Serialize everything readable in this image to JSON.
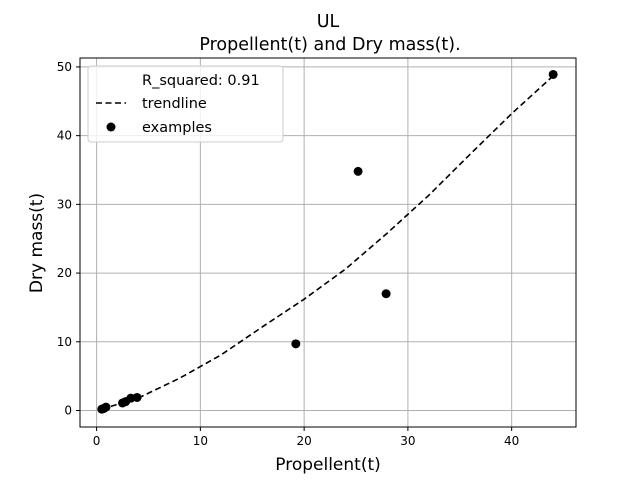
{
  "chart_data": {
    "type": "scatter",
    "title": "UL",
    "subtitle": "Propellent(t) and Dry mass(t).",
    "xlabel": "Propellent(t)",
    "ylabel": "Dry mass(t)",
    "xlim": [
      -1.6,
      46.2
    ],
    "ylim": [
      -2.4,
      51.3
    ],
    "xticks": [
      0,
      10,
      20,
      30,
      40
    ],
    "yticks": [
      0,
      10,
      20,
      30,
      40,
      50
    ],
    "grid": true,
    "legend_position": "top-left",
    "legend": [
      {
        "label": "R_squared: 0.91",
        "marker": "none"
      },
      {
        "label": "trendline",
        "marker": "dashed-line"
      },
      {
        "label": "examples",
        "marker": "dot"
      }
    ],
    "series": [
      {
        "name": "examples",
        "kind": "scatter",
        "color": "#000000",
        "points": [
          {
            "x": 0.5,
            "y": 0.2
          },
          {
            "x": 0.7,
            "y": 0.3
          },
          {
            "x": 0.9,
            "y": 0.5
          },
          {
            "x": 2.5,
            "y": 1.1
          },
          {
            "x": 2.8,
            "y": 1.3
          },
          {
            "x": 3.3,
            "y": 1.8
          },
          {
            "x": 3.9,
            "y": 1.9
          },
          {
            "x": 19.2,
            "y": 9.7
          },
          {
            "x": 25.2,
            "y": 34.8
          },
          {
            "x": 27.9,
            "y": 17.0
          },
          {
            "x": 44.0,
            "y": 48.9
          }
        ]
      },
      {
        "name": "trendline",
        "kind": "line",
        "style": "dashed",
        "color": "#000000",
        "points": [
          {
            "x": 0.5,
            "y": 0.2
          },
          {
            "x": 4.0,
            "y": 1.8
          },
          {
            "x": 8.0,
            "y": 4.7
          },
          {
            "x": 12.0,
            "y": 8.1
          },
          {
            "x": 16.0,
            "y": 12.2
          },
          {
            "x": 20.0,
            "y": 16.2
          },
          {
            "x": 24.0,
            "y": 20.6
          },
          {
            "x": 28.0,
            "y": 25.8
          },
          {
            "x": 32.0,
            "y": 31.3
          },
          {
            "x": 36.0,
            "y": 37.3
          },
          {
            "x": 40.0,
            "y": 43.2
          },
          {
            "x": 44.0,
            "y": 48.7
          }
        ]
      }
    ]
  }
}
